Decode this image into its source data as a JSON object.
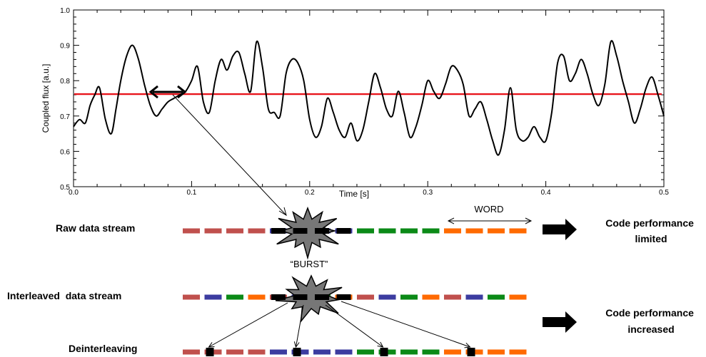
{
  "chart_data": {
    "type": "line",
    "xlabel": "Time [s]",
    "ylabel": "Coupled flux [a.u.]",
    "xlim": [
      0.0,
      0.5
    ],
    "ylim": [
      0.5,
      1.0
    ],
    "x_ticks": [
      "0.0",
      "0.1",
      "0.2",
      "0.3",
      "0.4",
      "0.5"
    ],
    "y_ticks": [
      "0.5",
      "0.6",
      "0.7",
      "0.8",
      "0.9",
      "1.0"
    ],
    "grid": false,
    "threshold": {
      "y": 0.762,
      "color": "#e8141c"
    },
    "series": [
      {
        "color": "#000000",
        "x": [
          0.0,
          0.005,
          0.01,
          0.014,
          0.018,
          0.022,
          0.027,
          0.032,
          0.036,
          0.04,
          0.045,
          0.05,
          0.055,
          0.06,
          0.065,
          0.07,
          0.075,
          0.08,
          0.085,
          0.09,
          0.095,
          0.1,
          0.105,
          0.11,
          0.115,
          0.12,
          0.125,
          0.13,
          0.135,
          0.14,
          0.145,
          0.15,
          0.155,
          0.16,
          0.165,
          0.17,
          0.175,
          0.18,
          0.185,
          0.19,
          0.195,
          0.2,
          0.205,
          0.21,
          0.215,
          0.22,
          0.225,
          0.23,
          0.235,
          0.24,
          0.245,
          0.25,
          0.255,
          0.26,
          0.265,
          0.27,
          0.275,
          0.28,
          0.285,
          0.29,
          0.295,
          0.3,
          0.305,
          0.31,
          0.315,
          0.32,
          0.325,
          0.33,
          0.335,
          0.34,
          0.345,
          0.35,
          0.355,
          0.36,
          0.365,
          0.37,
          0.375,
          0.38,
          0.385,
          0.39,
          0.395,
          0.4,
          0.405,
          0.41,
          0.415,
          0.42,
          0.425,
          0.43,
          0.435,
          0.44,
          0.445,
          0.45,
          0.455,
          0.46,
          0.465,
          0.47,
          0.475,
          0.48,
          0.485,
          0.49,
          0.495,
          0.5
        ],
        "y": [
          0.67,
          0.69,
          0.68,
          0.73,
          0.76,
          0.78,
          0.69,
          0.65,
          0.72,
          0.8,
          0.87,
          0.9,
          0.86,
          0.79,
          0.73,
          0.7,
          0.72,
          0.74,
          0.75,
          0.76,
          0.77,
          0.8,
          0.84,
          0.74,
          0.71,
          0.8,
          0.86,
          0.83,
          0.87,
          0.88,
          0.82,
          0.77,
          0.91,
          0.84,
          0.72,
          0.71,
          0.7,
          0.82,
          0.86,
          0.85,
          0.8,
          0.69,
          0.64,
          0.67,
          0.75,
          0.71,
          0.66,
          0.64,
          0.68,
          0.63,
          0.66,
          0.74,
          0.82,
          0.78,
          0.72,
          0.7,
          0.77,
          0.71,
          0.64,
          0.67,
          0.73,
          0.8,
          0.77,
          0.75,
          0.79,
          0.84,
          0.83,
          0.79,
          0.7,
          0.72,
          0.74,
          0.69,
          0.63,
          0.59,
          0.66,
          0.78,
          0.66,
          0.63,
          0.64,
          0.67,
          0.64,
          0.63,
          0.71,
          0.85,
          0.87,
          0.8,
          0.82,
          0.86,
          0.82,
          0.76,
          0.73,
          0.79,
          0.91,
          0.87,
          0.8,
          0.74,
          0.68,
          0.72,
          0.78,
          0.81,
          0.76,
          0.7
        ]
      }
    ]
  },
  "diagram": {
    "rows": {
      "raw": {
        "label": "Raw data stream",
        "colors": [
          "#c0504d",
          "#c0504d",
          "#c0504d",
          "#c0504d",
          "#3c3ca0",
          "#3c3ca0",
          "#3c3ca0",
          "#3c3ca0",
          "#0b8a17",
          "#0b8a17",
          "#0b8a17",
          "#0b8a17",
          "#ff6a00",
          "#ff6a00",
          "#ff6a00",
          "#ff6a00"
        ],
        "burst_covers": [
          4,
          5,
          6,
          7
        ]
      },
      "interleaved": {
        "label": "Interleaved  data stream",
        "colors": [
          "#c0504d",
          "#3c3ca0",
          "#0b8a17",
          "#ff6a00",
          "#c0504d",
          "#3c3ca0",
          "#0b8a17",
          "#ff6a00",
          "#c0504d",
          "#3c3ca0",
          "#0b8a17",
          "#ff6a00",
          "#c0504d",
          "#3c3ca0",
          "#0b8a17",
          "#ff6a00"
        ],
        "burst_covers": [
          4,
          5,
          6,
          7
        ]
      },
      "deinterleaved": {
        "label": "Deinterleaving",
        "colors": [
          "#c0504d",
          "#c0504d",
          "#c0504d",
          "#c0504d",
          "#3c3ca0",
          "#3c3ca0",
          "#3c3ca0",
          "#3c3ca0",
          "#0b8a17",
          "#0b8a17",
          "#0b8a17",
          "#0b8a17",
          "#ff6a00",
          "#ff6a00",
          "#ff6a00",
          "#ff6a00"
        ],
        "error_bits": [
          1,
          5,
          9,
          13
        ]
      }
    },
    "burst_label": "“BURST”",
    "word_label": "WORD",
    "result_limited": [
      "Code performance",
      "limited"
    ],
    "result_increased": [
      "Code performance",
      "increased"
    ],
    "burst_color": "#777777"
  }
}
